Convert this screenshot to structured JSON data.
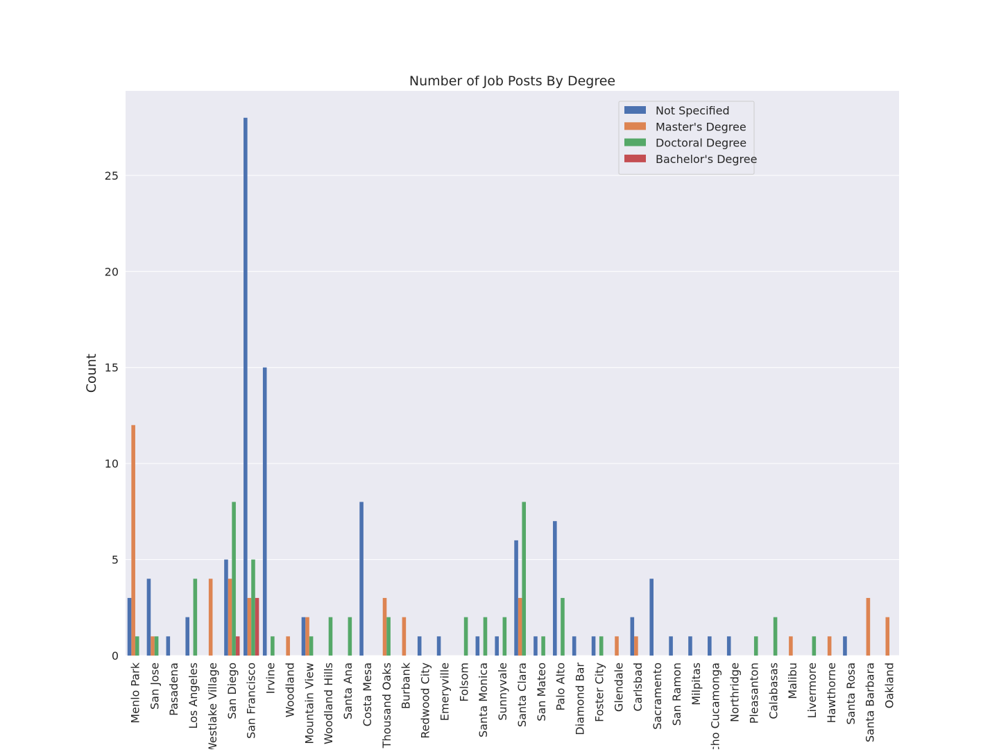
{
  "chart_data": {
    "type": "bar",
    "title": "Number of Job Posts By Degree",
    "xlabel": "",
    "ylabel": "Count",
    "ylim": [
      0,
      29.4
    ],
    "yticks": [
      0,
      5,
      10,
      15,
      20,
      25
    ],
    "grid": true,
    "legend_position": "top-right",
    "categories": [
      "Menlo Park",
      "San Jose",
      "Pasadena",
      "Los Angeles",
      "Westlake Village",
      "San Diego",
      "San Francisco",
      "Irvine",
      "Woodland",
      "Mountain View",
      "Woodland Hills",
      "Santa Ana",
      "Costa Mesa",
      "Thousand Oaks",
      "Burbank",
      "Redwood City",
      "Emeryville",
      "Folsom",
      "Santa Monica",
      "Sunnyvale",
      "Santa Clara",
      "San Mateo",
      "Palo Alto",
      "Diamond Bar",
      "Foster City",
      "Glendale",
      "Carlsbad",
      "Sacramento",
      "San Ramon",
      "Milpitas",
      "Rancho Cucamonga",
      "Northridge",
      "Pleasanton",
      "Calabasas",
      "Malibu",
      "Livermore",
      "Hawthorne",
      "Santa Rosa",
      "Santa Barbara",
      "Oakland"
    ],
    "series": [
      {
        "name": "Not Specified",
        "color": "#4c72b0",
        "values": [
          3,
          4,
          1,
          2,
          0,
          5,
          28,
          15,
          0,
          2,
          0,
          0,
          8,
          0,
          0,
          1,
          1,
          0,
          1,
          1,
          6,
          1,
          7,
          1,
          1,
          0,
          2,
          4,
          1,
          1,
          1,
          1,
          0,
          0,
          0,
          0,
          0,
          1,
          0,
          0
        ]
      },
      {
        "name": "Master's Degree",
        "color": "#dd8452",
        "values": [
          12,
          1,
          0,
          0,
          4,
          4,
          3,
          0,
          1,
          2,
          0,
          0,
          0,
          3,
          2,
          0,
          0,
          0,
          0,
          0,
          3,
          0,
          0,
          0,
          0,
          1,
          1,
          0,
          0,
          0,
          0,
          0,
          0,
          0,
          1,
          0,
          1,
          0,
          3,
          2
        ]
      },
      {
        "name": "Doctoral Degree",
        "color": "#55a868",
        "values": [
          1,
          1,
          0,
          4,
          0,
          8,
          5,
          1,
          0,
          1,
          2,
          2,
          0,
          2,
          0,
          0,
          0,
          2,
          2,
          2,
          8,
          1,
          3,
          0,
          1,
          0,
          0,
          0,
          0,
          0,
          0,
          0,
          1,
          2,
          0,
          1,
          0,
          0,
          0,
          0
        ]
      },
      {
        "name": "Bachelor's Degree",
        "color": "#c44e52",
        "values": [
          0,
          0,
          0,
          0,
          0,
          1,
          3,
          0,
          0,
          0,
          0,
          0,
          0,
          0,
          0,
          0,
          0,
          0,
          0,
          0,
          0,
          0,
          0,
          0,
          0,
          0,
          0,
          0,
          0,
          0,
          0,
          0,
          0,
          0,
          0,
          0,
          0,
          0,
          0,
          0
        ]
      }
    ],
    "colors": {
      "plot_background": "#eaeaf2",
      "grid": "#ffffff"
    }
  }
}
